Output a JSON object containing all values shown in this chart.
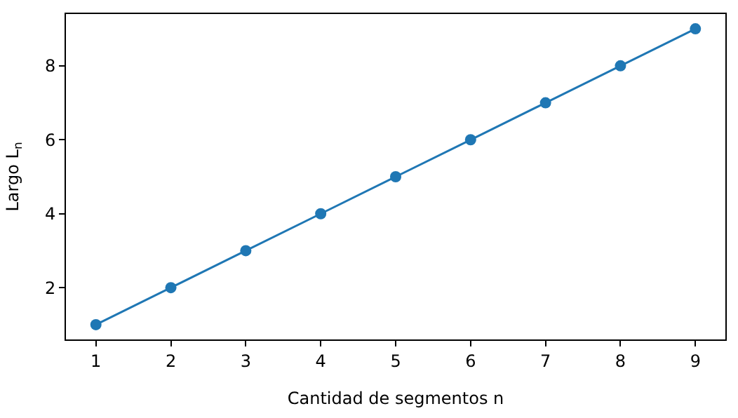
{
  "chart_data": {
    "type": "line",
    "xlabel": "Cantidad de segmentos n",
    "ylabel": "Largo L$_{n}$",
    "x": [
      1,
      2,
      3,
      4,
      5,
      6,
      7,
      8,
      9
    ],
    "series": [
      {
        "color": "#1f77b4",
        "values": [
          1,
          2,
          3,
          4,
          5,
          6,
          7,
          8,
          9
        ]
      }
    ],
    "xlim": [
      0.6,
      9.4
    ],
    "xticks": [
      1,
      2,
      3,
      4,
      5,
      6,
      7,
      8,
      9
    ],
    "ylim": [
      0.6,
      9.4
    ],
    "yticks": [
      2,
      4,
      6,
      8
    ],
    "marker": "circle",
    "line_style": "solid"
  }
}
